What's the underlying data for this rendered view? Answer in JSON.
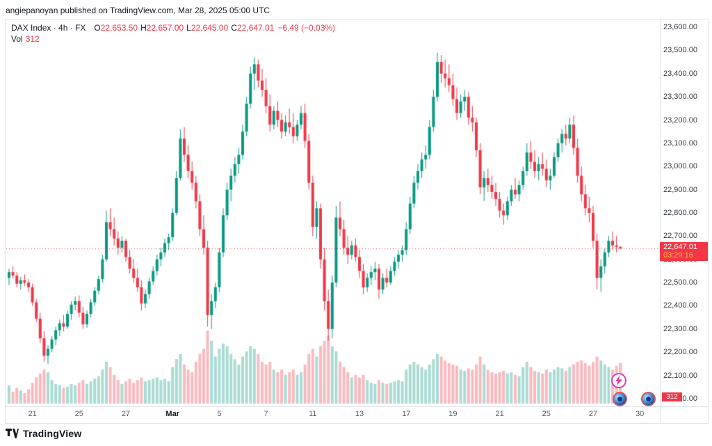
{
  "page": {
    "attribution": "angiepanoyan published on TradingView.com, Mar 28, 2025 05:00 UTC",
    "footer_logo_text": "TradingView"
  },
  "legend": {
    "symbol_line": "DAX Index · 4h · FX",
    "o_label": "O",
    "o": "22,653.50",
    "h_label": "H",
    "h": "22,657.00",
    "l_label": "L",
    "l": "22,645.00",
    "c_label": "C",
    "c": "22,647.01",
    "change": "−6.49 (−0.03%)",
    "vol_label": "Vol",
    "vol_value": "312"
  },
  "price_label": {
    "price": "22,647.01",
    "countdown": "03:29:16"
  },
  "volume_badge": "312",
  "icons": {
    "flash": "lightning-bolt",
    "reaction": "blue-sphere-emoji",
    "logo": "tradingview-mark"
  },
  "colors": {
    "up": "#089981",
    "down": "#f23645",
    "up_vol": "rgba(8,153,129,0.35)",
    "down_vol": "rgba(242,54,69,0.35)",
    "accent_red": "#f23645",
    "countdown": "#ffb74d",
    "text": "#131722"
  },
  "chart_data": {
    "type": "candlestick+volume",
    "title": "DAX Index 4h FX",
    "ylim": [
      21970,
      23630
    ],
    "last_close": 22647.01,
    "last_change": -6.49,
    "last_change_pct": -0.03,
    "last_volume": 312,
    "legend_pos": "top-left",
    "grid": false,
    "price_ticks": [
      "23,600.00",
      "23,500.00",
      "23,400.00",
      "23,300.00",
      "23,200.00",
      "23,100.00",
      "23,000.00",
      "22,900.00",
      "22,800.00",
      "22,700.00",
      "22,600.00",
      "22,500.00",
      "22,400.00",
      "22,300.00",
      "22,200.00",
      "22,100.00",
      "22,000.00"
    ],
    "hidden_price_ticks": [
      "22,600.00"
    ],
    "time_ticks": [
      [
        "21",
        6
      ],
      [
        "25",
        18
      ],
      [
        "27",
        30
      ],
      [
        "Mar",
        42
      ],
      [
        "5",
        54
      ],
      [
        "7",
        66
      ],
      [
        "11",
        78
      ],
      [
        "13",
        90
      ],
      [
        "17",
        102
      ],
      [
        "19",
        114
      ],
      [
        "21",
        126
      ],
      [
        "25",
        138
      ],
      [
        "27",
        150
      ],
      [
        "30",
        162
      ]
    ],
    "bars_note": "each bar = [open, high, low, close, volume], 4h bars Feb 20 - Mar 28 2025",
    "bars": [
      [
        22520,
        22560,
        22490,
        22545,
        140
      ],
      [
        22545,
        22570,
        22520,
        22530,
        90
      ],
      [
        22530,
        22545,
        22480,
        22495,
        120
      ],
      [
        22495,
        22525,
        22470,
        22510,
        100
      ],
      [
        22510,
        22535,
        22485,
        22500,
        80
      ],
      [
        22500,
        22515,
        22460,
        22480,
        110
      ],
      [
        22480,
        22495,
        22400,
        22415,
        160
      ],
      [
        22415,
        22430,
        22330,
        22345,
        200
      ],
      [
        22345,
        22370,
        22240,
        22260,
        230
      ],
      [
        22260,
        22290,
        22160,
        22185,
        260
      ],
      [
        22185,
        22230,
        22150,
        22215,
        240
      ],
      [
        22215,
        22270,
        22200,
        22255,
        180
      ],
      [
        22255,
        22310,
        22230,
        22295,
        150
      ],
      [
        22295,
        22340,
        22270,
        22325,
        140
      ],
      [
        22325,
        22360,
        22290,
        22310,
        120
      ],
      [
        22310,
        22380,
        22300,
        22365,
        130
      ],
      [
        22365,
        22420,
        22340,
        22405,
        150
      ],
      [
        22405,
        22440,
        22380,
        22420,
        140
      ],
      [
        22420,
        22445,
        22350,
        22370,
        160
      ],
      [
        22370,
        22395,
        22300,
        22320,
        180
      ],
      [
        22320,
        22380,
        22305,
        22365,
        150
      ],
      [
        22365,
        22430,
        22350,
        22415,
        170
      ],
      [
        22415,
        22480,
        22400,
        22465,
        190
      ],
      [
        22465,
        22530,
        22450,
        22515,
        210
      ],
      [
        22515,
        22620,
        22500,
        22600,
        260
      ],
      [
        22600,
        22810,
        22590,
        22760,
        320
      ],
      [
        22760,
        22820,
        22700,
        22730,
        280
      ],
      [
        22730,
        22780,
        22660,
        22690,
        220
      ],
      [
        22690,
        22720,
        22620,
        22650,
        180
      ],
      [
        22650,
        22700,
        22630,
        22680,
        150
      ],
      [
        22680,
        22690,
        22590,
        22610,
        170
      ],
      [
        22610,
        22640,
        22540,
        22560,
        190
      ],
      [
        22560,
        22600,
        22500,
        22520,
        160
      ],
      [
        22520,
        22560,
        22460,
        22480,
        180
      ],
      [
        22480,
        22510,
        22380,
        22410,
        200
      ],
      [
        22410,
        22470,
        22390,
        22450,
        170
      ],
      [
        22450,
        22520,
        22430,
        22505,
        180
      ],
      [
        22505,
        22570,
        22490,
        22550,
        190
      ],
      [
        22550,
        22620,
        22530,
        22600,
        200
      ],
      [
        22600,
        22650,
        22570,
        22630,
        180
      ],
      [
        22630,
        22690,
        22610,
        22670,
        190
      ],
      [
        22670,
        22710,
        22640,
        22695,
        170
      ],
      [
        22695,
        22820,
        22680,
        22800,
        280
      ],
      [
        22800,
        22980,
        22790,
        22950,
        340
      ],
      [
        22950,
        23160,
        22940,
        23120,
        380
      ],
      [
        23120,
        23170,
        23020,
        23050,
        300
      ],
      [
        23050,
        23090,
        22950,
        22980,
        260
      ],
      [
        22980,
        23020,
        22900,
        22930,
        240
      ],
      [
        22930,
        22960,
        22820,
        22850,
        320
      ],
      [
        22850,
        22880,
        22700,
        22730,
        380
      ],
      [
        22730,
        22790,
        22620,
        22650,
        420
      ],
      [
        22650,
        22680,
        22310,
        22360,
        560
      ],
      [
        22360,
        22450,
        22300,
        22420,
        480
      ],
      [
        22420,
        22500,
        22390,
        22480,
        360
      ],
      [
        22480,
        22650,
        22460,
        22630,
        420
      ],
      [
        22630,
        22820,
        22610,
        22790,
        460
      ],
      [
        22790,
        22930,
        22770,
        22900,
        440
      ],
      [
        22900,
        22990,
        22850,
        22960,
        380
      ],
      [
        22960,
        23040,
        22930,
        23010,
        340
      ],
      [
        23010,
        23080,
        22970,
        23050,
        300
      ],
      [
        23050,
        23180,
        23030,
        23150,
        360
      ],
      [
        23150,
        23300,
        23130,
        23270,
        400
      ],
      [
        23270,
        23430,
        23250,
        23400,
        440
      ],
      [
        23400,
        23470,
        23330,
        23440,
        420
      ],
      [
        23440,
        23460,
        23340,
        23370,
        380
      ],
      [
        23370,
        23420,
        23300,
        23330,
        320
      ],
      [
        23330,
        23380,
        23230,
        23260,
        300
      ],
      [
        23260,
        23310,
        23150,
        23180,
        320
      ],
      [
        23180,
        23260,
        23160,
        23240,
        260
      ],
      [
        23240,
        23280,
        23170,
        23200,
        240
      ],
      [
        23200,
        23230,
        23120,
        23150,
        260
      ],
      [
        23150,
        23220,
        23130,
        23190,
        220
      ],
      [
        23190,
        23250,
        23140,
        23170,
        240
      ],
      [
        23170,
        23230,
        23100,
        23130,
        260
      ],
      [
        23130,
        23200,
        23110,
        23180,
        220
      ],
      [
        23180,
        23260,
        23160,
        23230,
        240
      ],
      [
        23230,
        23270,
        23080,
        23110,
        300
      ],
      [
        23110,
        23140,
        22900,
        22930,
        380
      ],
      [
        22930,
        22960,
        22700,
        22740,
        420
      ],
      [
        22740,
        22850,
        22690,
        22820,
        360
      ],
      [
        22820,
        22840,
        22560,
        22600,
        440
      ],
      [
        22600,
        22650,
        22380,
        22420,
        480
      ],
      [
        22420,
        22470,
        22250,
        22300,
        520
      ],
      [
        22300,
        22530,
        22260,
        22500,
        440
      ],
      [
        22500,
        22830,
        22480,
        22780,
        400
      ],
      [
        22780,
        22850,
        22700,
        22730,
        320
      ],
      [
        22730,
        22770,
        22620,
        22650,
        280
      ],
      [
        22650,
        22700,
        22580,
        22620,
        240
      ],
      [
        22620,
        22680,
        22600,
        22660,
        200
      ],
      [
        22660,
        22690,
        22590,
        22610,
        220
      ],
      [
        22610,
        22640,
        22520,
        22550,
        200
      ],
      [
        22550,
        22580,
        22450,
        22480,
        220
      ],
      [
        22480,
        22540,
        22460,
        22520,
        180
      ],
      [
        22520,
        22570,
        22490,
        22545,
        160
      ],
      [
        22545,
        22590,
        22510,
        22560,
        150
      ],
      [
        22560,
        22580,
        22430,
        22470,
        180
      ],
      [
        22470,
        22540,
        22450,
        22520,
        160
      ],
      [
        22520,
        22560,
        22480,
        22500,
        150
      ],
      [
        22500,
        22570,
        22490,
        22550,
        160
      ],
      [
        22550,
        22610,
        22530,
        22590,
        170
      ],
      [
        22590,
        22640,
        22560,
        22620,
        180
      ],
      [
        22620,
        22660,
        22590,
        22640,
        170
      ],
      [
        22640,
        22760,
        22620,
        22730,
        260
      ],
      [
        22730,
        22870,
        22710,
        22840,
        300
      ],
      [
        22840,
        22960,
        22820,
        22930,
        320
      ],
      [
        22930,
        23010,
        22900,
        22980,
        300
      ],
      [
        22980,
        23060,
        22950,
        23030,
        280
      ],
      [
        23030,
        23090,
        22990,
        23050,
        260
      ],
      [
        23050,
        23200,
        23030,
        23170,
        300
      ],
      [
        23170,
        23330,
        23150,
        23300,
        340
      ],
      [
        23300,
        23490,
        23280,
        23450,
        380
      ],
      [
        23450,
        23480,
        23360,
        23400,
        360
      ],
      [
        23400,
        23460,
        23340,
        23380,
        330
      ],
      [
        23380,
        23440,
        23320,
        23350,
        310
      ],
      [
        23350,
        23400,
        23260,
        23290,
        300
      ],
      [
        23290,
        23340,
        23200,
        23230,
        290
      ],
      [
        23230,
        23310,
        23210,
        23280,
        260
      ],
      [
        23280,
        23330,
        23240,
        23300,
        250
      ],
      [
        23300,
        23320,
        23180,
        23210,
        270
      ],
      [
        23210,
        23260,
        23150,
        23190,
        260
      ],
      [
        23190,
        23210,
        23040,
        23070,
        300
      ],
      [
        23070,
        23100,
        22880,
        22910,
        360
      ],
      [
        22910,
        22980,
        22850,
        22950,
        300
      ],
      [
        22950,
        22990,
        22890,
        22920,
        260
      ],
      [
        22920,
        22960,
        22860,
        22890,
        240
      ],
      [
        22890,
        22930,
        22830,
        22860,
        230
      ],
      [
        22860,
        22890,
        22780,
        22810,
        240
      ],
      [
        22810,
        22840,
        22750,
        22790,
        250
      ],
      [
        22790,
        22870,
        22770,
        22850,
        230
      ],
      [
        22850,
        22920,
        22830,
        22900,
        240
      ],
      [
        22900,
        22950,
        22860,
        22880,
        220
      ],
      [
        22880,
        22940,
        22850,
        22920,
        210
      ],
      [
        22920,
        23000,
        22900,
        22980,
        280
      ],
      [
        22980,
        23100,
        22960,
        23060,
        320
      ],
      [
        23060,
        23110,
        22990,
        23020,
        280
      ],
      [
        23020,
        23070,
        22950,
        22980,
        250
      ],
      [
        22980,
        23040,
        22940,
        23010,
        240
      ],
      [
        23010,
        23060,
        22960,
        22990,
        230
      ],
      [
        22990,
        23030,
        22910,
        22940,
        260
      ],
      [
        22940,
        22990,
        22900,
        22960,
        240
      ],
      [
        22960,
        23060,
        22950,
        23040,
        260
      ],
      [
        23040,
        23120,
        23020,
        23100,
        280
      ],
      [
        23100,
        23160,
        23060,
        23140,
        270
      ],
      [
        23140,
        23180,
        23090,
        23120,
        250
      ],
      [
        23120,
        23210,
        23100,
        23180,
        280
      ],
      [
        23180,
        23220,
        23050,
        23080,
        300
      ],
      [
        23080,
        23120,
        22930,
        22960,
        320
      ],
      [
        22960,
        23000,
        22850,
        22880,
        330
      ],
      [
        22880,
        22920,
        22790,
        22820,
        310
      ],
      [
        22820,
        22870,
        22760,
        22800,
        290
      ],
      [
        22800,
        22830,
        22650,
        22680,
        320
      ],
      [
        22680,
        22710,
        22470,
        22520,
        360
      ],
      [
        22520,
        22600,
        22460,
        22570,
        330
      ],
      [
        22570,
        22650,
        22540,
        22630,
        300
      ],
      [
        22630,
        22700,
        22610,
        22680,
        280
      ],
      [
        22680,
        22720,
        22640,
        22660,
        260
      ],
      [
        22660,
        22700,
        22630,
        22653.5,
        290
      ],
      [
        22653.5,
        22657,
        22645,
        22647.01,
        312
      ]
    ]
  }
}
